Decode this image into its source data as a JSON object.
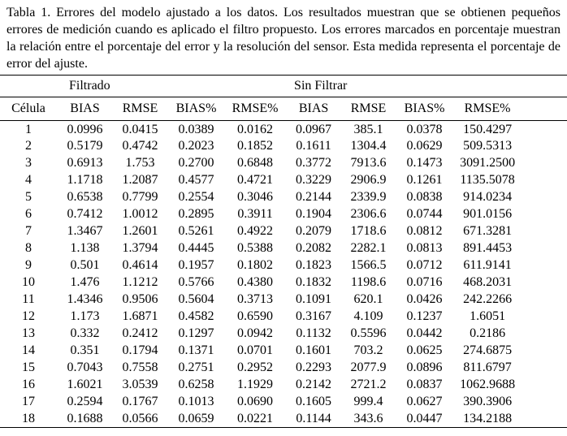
{
  "caption": "Tabla 1. Errores del modelo ajustado a los datos. Los resultados muestran que se obtienen pequeños errores de medición cuando es aplicado el filtro propuesto. Los errores marcados en porcentaje muestran la relación entre el porcentaje del error y la resolución del sensor. Esta medida representa el porcentaje de error del ajuste.",
  "table": {
    "group_headers": [
      {
        "label": "",
        "span": 1,
        "align": "center"
      },
      {
        "label": "Filtrado",
        "span": 4,
        "align": "left"
      },
      {
        "label": "Sin Filtrar",
        "span": 4,
        "align": "left"
      }
    ],
    "columns": [
      "Célula",
      "BIAS",
      "RMSE",
      "BIAS%",
      "RMSE%",
      "BIAS",
      "RMSE",
      "BIAS%",
      "RMSE%"
    ],
    "rows": [
      [
        "1",
        "0.0996",
        "0.0415",
        "0.0389",
        "0.0162",
        "0.0967",
        "385.1",
        "0.0378",
        "150.4297"
      ],
      [
        "2",
        "0.5179",
        "0.4742",
        "0.2023",
        "0.1852",
        "0.1611",
        "1304.4",
        "0.0629",
        "509.5313"
      ],
      [
        "3",
        "0.6913",
        "1.753",
        "0.2700",
        "0.6848",
        "0.3772",
        "7913.6",
        "0.1473",
        "3091.2500"
      ],
      [
        "4",
        "1.1718",
        "1.2087",
        "0.4577",
        "0.4721",
        "0.3229",
        "2906.9",
        "0.1261",
        "1135.5078"
      ],
      [
        "5",
        "0.6538",
        "0.7799",
        "0.2554",
        "0.3046",
        "0.2144",
        "2339.9",
        "0.0838",
        "914.0234"
      ],
      [
        "6",
        "0.7412",
        "1.0012",
        "0.2895",
        "0.3911",
        "0.1904",
        "2306.6",
        "0.0744",
        "901.0156"
      ],
      [
        "7",
        "1.3467",
        "1.2601",
        "0.5261",
        "0.4922",
        "0.2079",
        "1718.6",
        "0.0812",
        "671.3281"
      ],
      [
        "8",
        "1.138",
        "1.3794",
        "0.4445",
        "0.5388",
        "0.2082",
        "2282.1",
        "0.0813",
        "891.4453"
      ],
      [
        "9",
        "0.501",
        "0.4614",
        "0.1957",
        "0.1802",
        "0.1823",
        "1566.5",
        "0.0712",
        "611.9141"
      ],
      [
        "10",
        "1.476",
        "1.1212",
        "0.5766",
        "0.4380",
        "0.1832",
        "1198.6",
        "0.0716",
        "468.2031"
      ],
      [
        "11",
        "1.4346",
        "0.9506",
        "0.5604",
        "0.3713",
        "0.1091",
        "620.1",
        "0.0426",
        "242.2266"
      ],
      [
        "12",
        "1.173",
        "1.6871",
        "0.4582",
        "0.6590",
        "0.3167",
        "4.109",
        "0.1237",
        "1.6051"
      ],
      [
        "13",
        "0.332",
        "0.2412",
        "0.1297",
        "0.0942",
        "0.1132",
        "0.5596",
        "0.0442",
        "0.2186"
      ],
      [
        "14",
        "0.351",
        "0.1794",
        "0.1371",
        "0.0701",
        "0.1601",
        "703.2",
        "0.0625",
        "274.6875"
      ],
      [
        "15",
        "0.7043",
        "0.7558",
        "0.2751",
        "0.2952",
        "0.2293",
        "2077.9",
        "0.0896",
        "811.6797"
      ],
      [
        "16",
        "1.6021",
        "3.0539",
        "0.6258",
        "1.1929",
        "0.2142",
        "2721.2",
        "0.0837",
        "1062.9688"
      ],
      [
        "17",
        "0.2594",
        "0.1767",
        "0.1013",
        "0.0690",
        "0.1605",
        "999.4",
        "0.0627",
        "390.3906"
      ],
      [
        "18",
        "0.1688",
        "0.0566",
        "0.0659",
        "0.0221",
        "0.1144",
        "343.6",
        "0.0447",
        "134.2188"
      ]
    ]
  }
}
